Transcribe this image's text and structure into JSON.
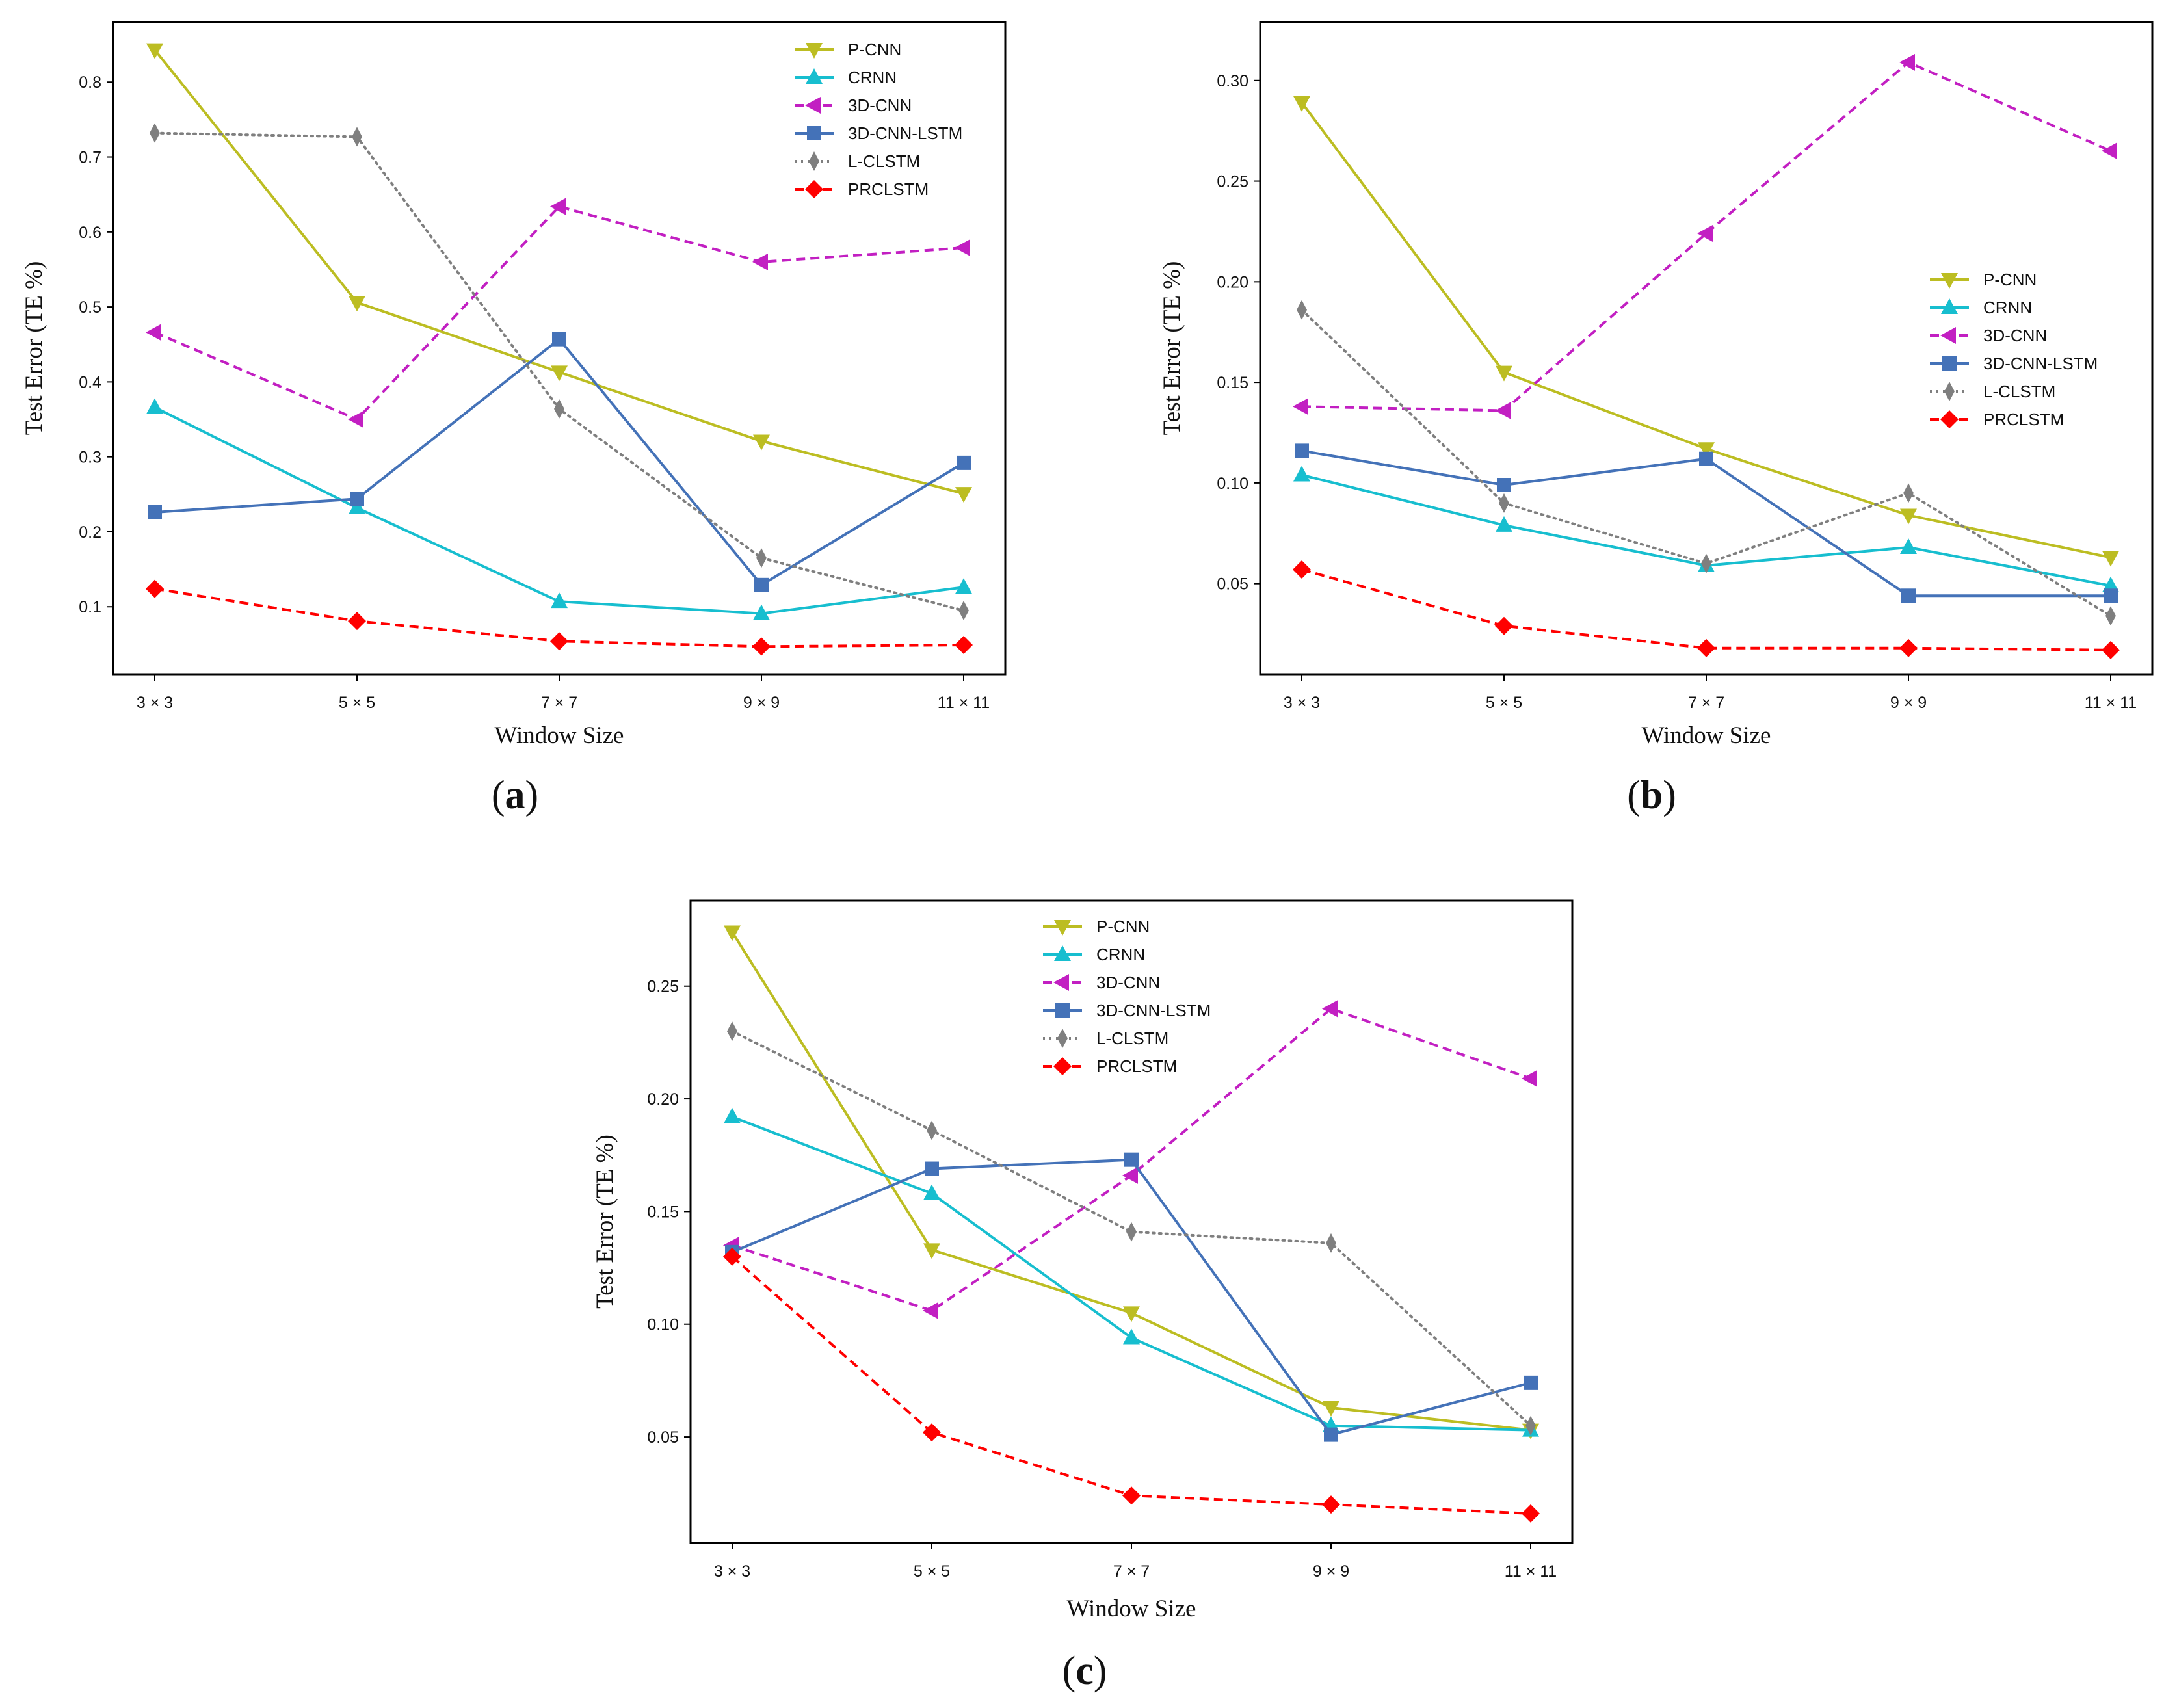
{
  "chart_data": [
    {
      "type": "line",
      "panel_label": "(a)",
      "xlabel": "Window Size",
      "ylabel": "Test Error (TE %)",
      "categories": [
        "3 × 3",
        "5 × 5",
        "7 × 7",
        "9 × 9",
        "11 × 11"
      ],
      "ylim": [
        0.01,
        0.88
      ],
      "yticks": [
        0.1,
        0.2,
        0.3,
        0.4,
        0.5,
        0.6,
        0.7,
        0.8
      ],
      "ytick_labels": [
        "0.1",
        "0.2",
        "0.3",
        "0.4",
        "0.5",
        "0.6",
        "0.7",
        "0.8"
      ],
      "legend_position": "top-right",
      "series": [
        {
          "name": "P-CNN",
          "color": "#bcbd22",
          "dash": "solid",
          "marker": "triangle-down",
          "values": [
            0.843,
            0.506,
            0.413,
            0.321,
            0.251
          ]
        },
        {
          "name": "CRNN",
          "color": "#17becf",
          "dash": "solid",
          "marker": "triangle-up",
          "values": [
            0.366,
            0.232,
            0.107,
            0.091,
            0.126
          ]
        },
        {
          "name": "3D-CNN",
          "color": "#c21fc2",
          "dash": "dashed",
          "marker": "triangle-left",
          "values": [
            0.466,
            0.35,
            0.634,
            0.56,
            0.579
          ]
        },
        {
          "name": "3D-CNN-LSTM",
          "color": "#4472b8",
          "dash": "solid",
          "marker": "square",
          "values": [
            0.226,
            0.244,
            0.457,
            0.129,
            0.292
          ]
        },
        {
          "name": "L-CLSTM",
          "color": "#7f7f7f",
          "dash": "dotted",
          "marker": "thin-diamond",
          "values": [
            0.732,
            0.727,
            0.364,
            0.165,
            0.095
          ]
        },
        {
          "name": "PRCLSTM",
          "color": "#ff0000",
          "dash": "dashed",
          "marker": "diamond",
          "values": [
            0.124,
            0.081,
            0.054,
            0.047,
            0.049
          ]
        }
      ]
    },
    {
      "type": "line",
      "panel_label": "(b)",
      "xlabel": "Window Size",
      "ylabel": "Test Error (TE %)",
      "categories": [
        "3 × 3",
        "5 × 5",
        "7 × 7",
        "9 × 9",
        "11 × 11"
      ],
      "ylim": [
        0.005,
        0.329
      ],
      "yticks": [
        0.05,
        0.1,
        0.15,
        0.2,
        0.25,
        0.3
      ],
      "ytick_labels": [
        "0.05",
        "0.10",
        "0.15",
        "0.20",
        "0.25",
        "0.30"
      ],
      "legend_position": "center-right",
      "series": [
        {
          "name": "P-CNN",
          "color": "#bcbd22",
          "dash": "solid",
          "marker": "triangle-down",
          "values": [
            0.289,
            0.155,
            0.117,
            0.084,
            0.063
          ]
        },
        {
          "name": "CRNN",
          "color": "#17becf",
          "dash": "solid",
          "marker": "triangle-up",
          "values": [
            0.104,
            0.079,
            0.059,
            0.068,
            0.049
          ]
        },
        {
          "name": "3D-CNN",
          "color": "#c21fc2",
          "dash": "dashed",
          "marker": "triangle-left",
          "values": [
            0.138,
            0.136,
            0.224,
            0.309,
            0.265
          ]
        },
        {
          "name": "3D-CNN-LSTM",
          "color": "#4472b8",
          "dash": "solid",
          "marker": "square",
          "values": [
            0.116,
            0.099,
            0.112,
            0.044,
            0.044
          ]
        },
        {
          "name": "L-CLSTM",
          "color": "#7f7f7f",
          "dash": "dotted",
          "marker": "thin-diamond",
          "values": [
            0.186,
            0.09,
            0.06,
            0.095,
            0.034
          ]
        },
        {
          "name": "PRCLSTM",
          "color": "#ff0000",
          "dash": "dashed",
          "marker": "diamond",
          "values": [
            0.057,
            0.029,
            0.018,
            0.018,
            0.017
          ]
        }
      ]
    },
    {
      "type": "line",
      "panel_label": "(c)",
      "xlabel": "Window Size",
      "ylabel": "Test Error (TE %)",
      "categories": [
        "3 × 3",
        "5 × 5",
        "7 × 7",
        "9 × 9",
        "11 × 11"
      ],
      "ylim": [
        0.003,
        0.288
      ],
      "yticks": [
        0.05,
        0.1,
        0.15,
        0.2,
        0.25
      ],
      "ytick_labels": [
        "0.05",
        "0.10",
        "0.15",
        "0.20",
        "0.25"
      ],
      "legend_position": "top-center",
      "series": [
        {
          "name": "P-CNN",
          "color": "#bcbd22",
          "dash": "solid",
          "marker": "triangle-down",
          "values": [
            0.274,
            0.133,
            0.105,
            0.063,
            0.053
          ]
        },
        {
          "name": "CRNN",
          "color": "#17becf",
          "dash": "solid",
          "marker": "triangle-up",
          "values": [
            0.192,
            0.158,
            0.094,
            0.055,
            0.053
          ]
        },
        {
          "name": "3D-CNN",
          "color": "#c21fc2",
          "dash": "dashed",
          "marker": "triangle-left",
          "values": [
            0.135,
            0.106,
            0.166,
            0.24,
            0.209
          ]
        },
        {
          "name": "3D-CNN-LSTM",
          "color": "#4472b8",
          "dash": "solid",
          "marker": "square",
          "values": [
            0.132,
            0.169,
            0.173,
            0.051,
            0.074
          ]
        },
        {
          "name": "L-CLSTM",
          "color": "#7f7f7f",
          "dash": "dotted",
          "marker": "thin-diamond",
          "values": [
            0.23,
            0.186,
            0.141,
            0.136,
            0.055
          ]
        },
        {
          "name": "PRCLSTM",
          "color": "#ff0000",
          "dash": "dashed",
          "marker": "diamond",
          "values": [
            0.13,
            0.052,
            0.024,
            0.02,
            0.016
          ]
        }
      ]
    }
  ]
}
